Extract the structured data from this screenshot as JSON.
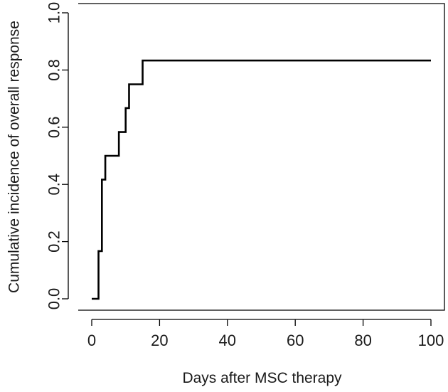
{
  "chart_data": {
    "type": "line",
    "title": "",
    "xlabel": "Days after MSC therapy",
    "ylabel": "Cumulative incidence of overall response",
    "xlim": [
      0,
      100
    ],
    "ylim": [
      0,
      1
    ],
    "xticks": [
      0,
      20,
      40,
      60,
      80,
      100
    ],
    "yticks": [
      0.0,
      0.2,
      0.4,
      0.6,
      0.8,
      1.0
    ],
    "xtick_labels": [
      "0",
      "20",
      "40",
      "60",
      "80",
      "100"
    ],
    "ytick_labels": [
      "0.0",
      "0.2",
      "0.4",
      "0.6",
      "0.8",
      "1.0"
    ],
    "grid": false,
    "series": [
      {
        "name": "Cumulative incidence",
        "step": true,
        "x": [
          0,
          2,
          3,
          4,
          8,
          10,
          11,
          15,
          100
        ],
        "y": [
          0,
          0.1667,
          0.4167,
          0.5,
          0.5833,
          0.6667,
          0.75,
          0.8333,
          0.8333
        ]
      }
    ]
  }
}
